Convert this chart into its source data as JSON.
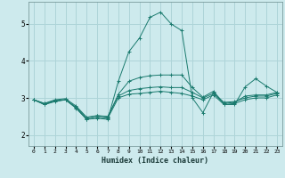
{
  "xlabel": "Humidex (Indice chaleur)",
  "bg_color": "#cdeaed",
  "grid_color": "#aed4d8",
  "line_color": "#1a7a6e",
  "xlim": [
    -0.5,
    23.5
  ],
  "ylim": [
    1.7,
    5.6
  ],
  "yticks": [
    2,
    3,
    4,
    5
  ],
  "xticks": [
    0,
    1,
    2,
    3,
    4,
    5,
    6,
    7,
    8,
    9,
    10,
    11,
    12,
    13,
    14,
    15,
    16,
    17,
    18,
    19,
    20,
    21,
    22,
    23
  ],
  "lines": [
    {
      "x": [
        0,
        1,
        2,
        3,
        4,
        5,
        6,
        7,
        8,
        9,
        10,
        11,
        12,
        13,
        14,
        15,
        16,
        17,
        18,
        19,
        20,
        21,
        22,
        23
      ],
      "y": [
        2.95,
        2.82,
        2.92,
        2.95,
        2.73,
        2.42,
        2.45,
        2.42,
        3.45,
        4.25,
        4.62,
        5.18,
        5.32,
        5.0,
        4.82,
        3.0,
        2.6,
        3.15,
        2.82,
        2.82,
        3.3,
        3.52,
        3.32,
        3.15
      ]
    },
    {
      "x": [
        0,
        1,
        2,
        3,
        4,
        5,
        6,
        7,
        8,
        9,
        10,
        11,
        12,
        13,
        14,
        15,
        16,
        17,
        18,
        19,
        20,
        21,
        22,
        23
      ],
      "y": [
        2.95,
        2.85,
        2.95,
        2.98,
        2.78,
        2.48,
        2.52,
        2.48,
        3.1,
        3.45,
        3.55,
        3.6,
        3.62,
        3.62,
        3.62,
        3.28,
        3.02,
        3.18,
        2.85,
        2.88,
        3.05,
        3.08,
        3.08,
        3.15
      ]
    },
    {
      "x": [
        0,
        1,
        2,
        3,
        4,
        5,
        6,
        7,
        8,
        9,
        10,
        11,
        12,
        13,
        14,
        15,
        16,
        17,
        18,
        19,
        20,
        21,
        22,
        23
      ],
      "y": [
        2.95,
        2.85,
        2.92,
        2.95,
        2.75,
        2.45,
        2.52,
        2.5,
        3.05,
        3.2,
        3.25,
        3.28,
        3.3,
        3.28,
        3.28,
        3.15,
        3.0,
        3.12,
        2.88,
        2.9,
        3.0,
        3.05,
        3.05,
        3.12
      ]
    },
    {
      "x": [
        0,
        1,
        2,
        3,
        4,
        5,
        6,
        7,
        8,
        9,
        10,
        11,
        12,
        13,
        14,
        15,
        16,
        17,
        18,
        19,
        20,
        21,
        22,
        23
      ],
      "y": [
        2.95,
        2.82,
        2.9,
        2.95,
        2.72,
        2.42,
        2.48,
        2.45,
        3.0,
        3.1,
        3.12,
        3.15,
        3.18,
        3.15,
        3.12,
        3.05,
        2.95,
        3.08,
        2.82,
        2.85,
        2.95,
        3.0,
        3.0,
        3.08
      ]
    }
  ]
}
